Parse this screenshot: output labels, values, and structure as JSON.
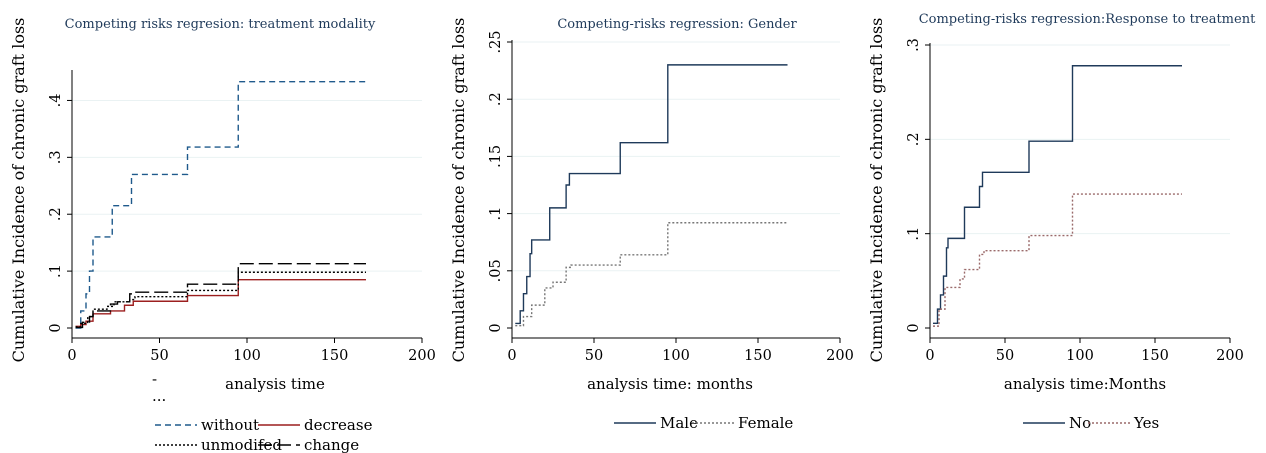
{
  "chart_data": [
    {
      "type": "line",
      "title": "Competing risks regresion: treatment modality",
      "xlabel": "analysis time",
      "ylabel": "Cumulative Incidence of chronic graft loss",
      "xlim": [
        0,
        200
      ],
      "ylim": [
        0,
        0.45
      ],
      "xticks": [
        0,
        50,
        100,
        150,
        200
      ],
      "xtick_labels": [
        "0",
        "50",
        "100",
        "150",
        "200"
      ],
      "yticks": [
        0,
        0.1,
        0.2,
        0.3,
        0.4
      ],
      "ytick_labels": [
        "0",
        ".1",
        ".2",
        ".3",
        ".4"
      ],
      "grid": true,
      "legend_position": "bottom",
      "stray_marks": [
        "-",
        "..."
      ],
      "series": [
        {
          "name": "without",
          "color": "#1f5a8c",
          "style": "dash",
          "x": [
            2,
            5,
            8,
            10,
            12,
            20,
            23,
            30,
            34,
            45,
            60,
            66,
            80,
            95,
            168
          ],
          "y": [
            0,
            0.03,
            0.06,
            0.1,
            0.16,
            0.16,
            0.215,
            0.215,
            0.27,
            0.27,
            0.27,
            0.318,
            0.318,
            0.433,
            0.433
          ]
        },
        {
          "name": "decrease",
          "color": "#9c1f1f",
          "style": "solid",
          "x": [
            2,
            5,
            8,
            12,
            22,
            30,
            35,
            66,
            95,
            168
          ],
          "y": [
            0.003,
            0.006,
            0.012,
            0.025,
            0.03,
            0.04,
            0.047,
            0.057,
            0.085,
            0.085
          ]
        },
        {
          "name": "unmodifed",
          "color": "#000000",
          "style": "dot",
          "x": [
            2,
            5,
            9,
            12,
            20,
            24,
            33,
            36,
            66,
            95,
            168
          ],
          "y": [
            0.002,
            0.008,
            0.02,
            0.033,
            0.038,
            0.046,
            0.05,
            0.055,
            0.066,
            0.098,
            0.098
          ]
        },
        {
          "name": "change",
          "color": "#000000",
          "style": "longdash",
          "x": [
            2,
            6,
            10,
            12,
            22,
            26,
            33,
            36,
            66,
            95,
            168
          ],
          "y": [
            0.001,
            0.01,
            0.02,
            0.03,
            0.042,
            0.046,
            0.06,
            0.063,
            0.077,
            0.113,
            0.113
          ]
        }
      ]
    },
    {
      "type": "line",
      "title": "Competing-risks regression: Gender",
      "xlabel": "analysis time: months",
      "ylabel": "Cumulative Incidence of chronic graft loss",
      "xlim": [
        0,
        200
      ],
      "ylim": [
        0,
        0.25
      ],
      "xticks": [
        0,
        50,
        100,
        150,
        200
      ],
      "xtick_labels": [
        "0",
        "50",
        "100",
        "150",
        "200"
      ],
      "yticks": [
        0,
        0.05,
        0.1,
        0.15,
        0.2,
        0.25
      ],
      "ytick_labels": [
        "0",
        ".05",
        ".1",
        ".15",
        ".2",
        ".25"
      ],
      "grid": true,
      "legend_position": "bottom",
      "series": [
        {
          "name": "Male",
          "color": "#1f3a5a",
          "style": "solid",
          "x": [
            2,
            5,
            7,
            9,
            11,
            12,
            20,
            23,
            30,
            33,
            35,
            50,
            66,
            95,
            168
          ],
          "y": [
            0.004,
            0.015,
            0.03,
            0.045,
            0.065,
            0.077,
            0.077,
            0.105,
            0.105,
            0.125,
            0.135,
            0.135,
            0.162,
            0.23,
            0.23
          ]
        },
        {
          "name": "Female",
          "color": "#777777",
          "style": "dot",
          "x": [
            2,
            7,
            12,
            20,
            25,
            33,
            36,
            66,
            95,
            168
          ],
          "y": [
            0.002,
            0.01,
            0.02,
            0.035,
            0.04,
            0.053,
            0.055,
            0.064,
            0.092,
            0.092
          ]
        }
      ]
    },
    {
      "type": "line",
      "title": "Competing-risks regression:Response to treatment",
      "xlabel": "analysis time:Months",
      "ylabel": "Cumulative Incidence of chronic graft loss",
      "xlim": [
        0,
        200
      ],
      "ylim": [
        0,
        0.3
      ],
      "xticks": [
        0,
        50,
        100,
        150,
        200
      ],
      "xtick_labels": [
        "0",
        "50",
        "100",
        "150",
        "200"
      ],
      "yticks": [
        0,
        0.1,
        0.2,
        0.3
      ],
      "ytick_labels": [
        "0",
        ".1",
        ".2",
        ".3"
      ],
      "grid": true,
      "legend_position": "bottom",
      "series": [
        {
          "name": "No",
          "color": "#1f3a5a",
          "style": "solid",
          "x": [
            2,
            5,
            7,
            9,
            11,
            12,
            20,
            23,
            30,
            33,
            35,
            50,
            66,
            95,
            168
          ],
          "y": [
            0.005,
            0.02,
            0.035,
            0.055,
            0.085,
            0.095,
            0.095,
            0.128,
            0.128,
            0.15,
            0.165,
            0.165,
            0.198,
            0.278,
            0.278
          ]
        },
        {
          "name": "Yes",
          "color": "#9a6a6a",
          "style": "dot",
          "x": [
            2,
            6,
            10,
            20,
            23,
            33,
            36,
            66,
            95,
            168
          ],
          "y": [
            0.002,
            0.02,
            0.043,
            0.052,
            0.062,
            0.078,
            0.082,
            0.098,
            0.142,
            0.142
          ]
        }
      ]
    }
  ]
}
